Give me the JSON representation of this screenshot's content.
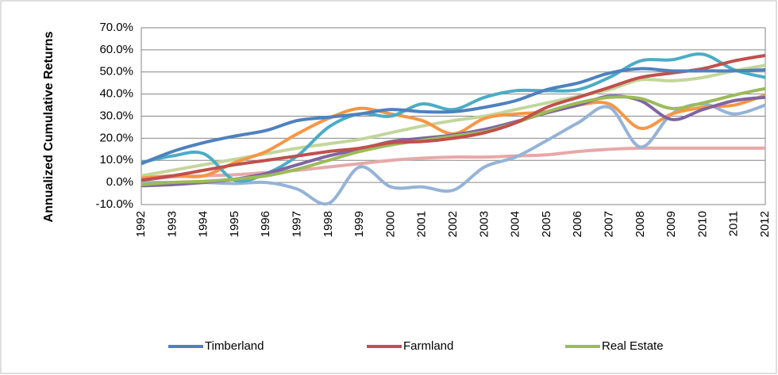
{
  "chart_data": {
    "type": "line",
    "y_label": "Annualized Cumulative Returns",
    "categories": [
      "1992",
      "1993",
      "1994",
      "1995",
      "1996",
      "1997",
      "1998",
      "1999",
      "2000",
      "2001",
      "2002",
      "2003",
      "2004",
      "2005",
      "2006",
      "2007",
      "2008",
      "2009",
      "2010",
      "2011",
      "2012"
    ],
    "ylim": [
      -10,
      70
    ],
    "yticks": [
      {
        "value": -10,
        "label": "-10.0%"
      },
      {
        "value": 0,
        "label": "0.0%"
      },
      {
        "value": 10,
        "label": "10.0%"
      },
      {
        "value": 20,
        "label": "20.0%"
      },
      {
        "value": 30,
        "label": "30.0%"
      },
      {
        "value": 40,
        "label": "40.0%"
      },
      {
        "value": 50,
        "label": "50.0%"
      },
      {
        "value": 60,
        "label": "60.0%"
      },
      {
        "value": 70,
        "label": "70.0%"
      }
    ],
    "grid": true,
    "legend": "bottom",
    "series": [
      {
        "color": "#c3d69b",
        "values": [
          3,
          5.5,
          8,
          10.5,
          13,
          15.5,
          17.5,
          19.5,
          22.5,
          25.5,
          28,
          30,
          33,
          36,
          39,
          42,
          46.5,
          46,
          47.5,
          50.5,
          53
        ]
      },
      {
        "color": "#e6a9a8",
        "values": [
          1,
          2.5,
          3,
          3.5,
          4.5,
          5.5,
          7,
          8.5,
          10,
          11,
          11.5,
          11.5,
          12,
          12.5,
          14,
          15,
          15.5,
          15.5,
          15.5,
          15.5,
          15.5
        ]
      },
      {
        "color": "#95b3d7",
        "values": [
          0,
          0,
          0,
          -0.5,
          0,
          -3,
          -9.5,
          7,
          -2,
          -2,
          -3.5,
          7,
          11.5,
          19,
          27,
          34,
          16,
          31,
          35.5,
          31,
          35
        ]
      },
      {
        "color": "#f79646",
        "values": [
          2,
          3,
          3,
          9,
          14,
          22,
          29,
          33.5,
          31,
          28,
          22,
          29,
          31,
          32,
          35,
          35.5,
          24.5,
          31,
          34,
          35,
          39.5
        ]
      },
      {
        "color": "#4bacc6",
        "values": [
          9,
          12,
          13,
          1,
          4,
          12,
          25,
          31,
          30,
          35.5,
          33,
          38.5,
          41.5,
          41.5,
          42,
          47.5,
          55,
          55.5,
          58,
          51,
          47.5
        ]
      },
      {
        "color": "#8064a2",
        "values": [
          -1.5,
          -1,
          0,
          1.5,
          4,
          8,
          12,
          15,
          18.5,
          20,
          21.5,
          24,
          27.5,
          31.5,
          35,
          39,
          37,
          28.5,
          33,
          37,
          38.5
        ]
      },
      {
        "name": "Real Estate",
        "color": "#9bbb59",
        "values": [
          -1,
          0,
          0.5,
          1.5,
          3,
          6,
          10,
          14,
          17,
          19,
          21,
          23,
          27,
          32,
          36,
          38.5,
          38,
          33.5,
          36,
          39.5,
          42.5
        ]
      },
      {
        "name": "Farmland",
        "color": "#c0504d",
        "values": [
          1,
          3,
          5.5,
          8,
          10,
          12,
          14,
          15.5,
          18,
          18.5,
          20,
          22.5,
          27,
          34,
          38.5,
          43,
          47.5,
          49.5,
          51.5,
          55,
          57.5
        ]
      },
      {
        "name": "Timberland",
        "color": "#4f81bd",
        "values": [
          8.5,
          14,
          18,
          21,
          23.5,
          28,
          29.5,
          31,
          33,
          32,
          32,
          34,
          37,
          42,
          45,
          49.5,
          51.5,
          50.5,
          50.5,
          50.5,
          51
        ]
      }
    ]
  }
}
